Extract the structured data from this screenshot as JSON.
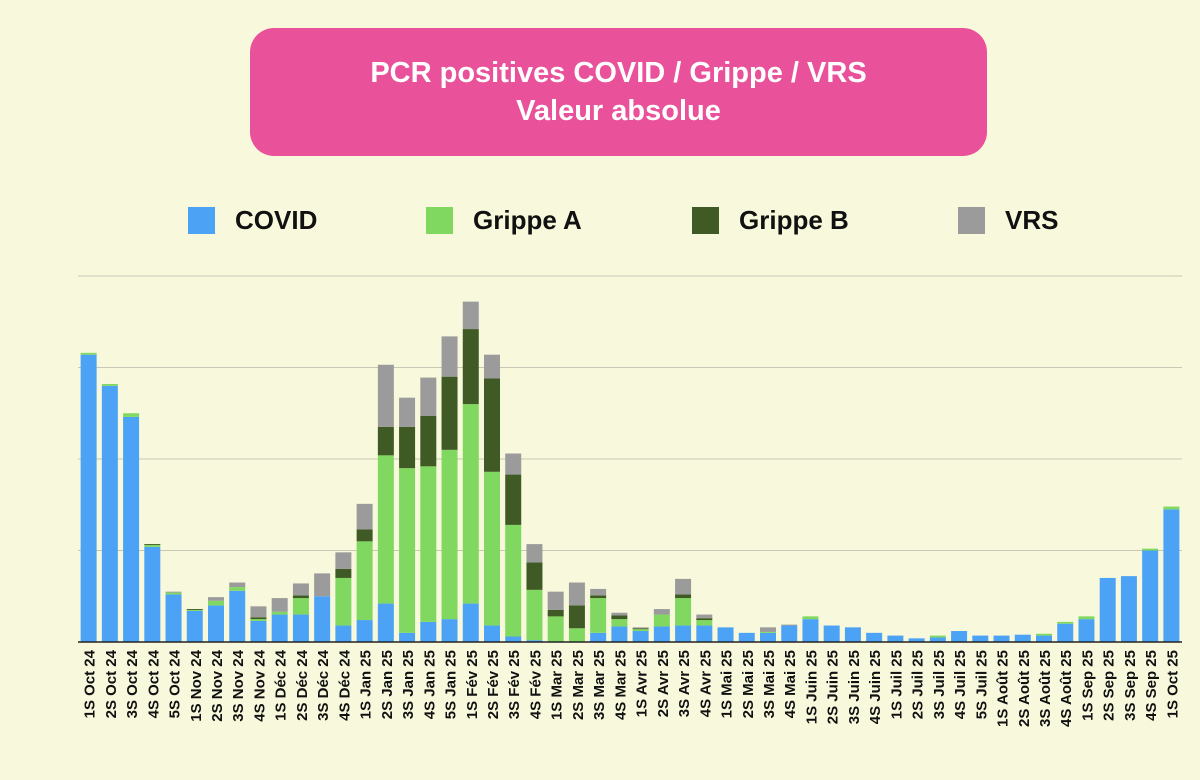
{
  "title": {
    "line1": "PCR positives COVID / Grippe / VRS",
    "line2": "Valeur absolue"
  },
  "legend": [
    {
      "label": "COVID",
      "color": "#4ca3f5"
    },
    {
      "label": "Grippe A",
      "color": "#80d860"
    },
    {
      "label": "Grippe B",
      "color": "#3f5a24"
    },
    {
      "label": "VRS",
      "color": "#9b9b9b"
    }
  ],
  "chart_data": {
    "type": "bar",
    "stacked": true,
    "title": "PCR positives COVID / Grippe / VRS — Valeur absolue",
    "xlabel": "",
    "ylabel": "",
    "ylim": [
      0,
      400
    ],
    "grid": true,
    "legend_position": "top",
    "categories": [
      "1S Oct 24",
      "2S Oct 24",
      "3S Oct 24",
      "4S Oct 24",
      "5S Oct 24",
      "1S Nov 24",
      "2S Nov 24",
      "3S Nov 24",
      "4S Nov 24",
      "1S Déc 24",
      "2S Déc 24",
      "3S Déc 24",
      "4S Déc 24",
      "1S Jan 25",
      "2S Jan 25",
      "3S Jan 25",
      "4S Jan 25",
      "5S Jan 25",
      "1S Fév 25",
      "2S Fév 25",
      "3S Fév 25",
      "4S Fév 25",
      "1S Mar 25",
      "2S Mar 25",
      "3S Mar 25",
      "4S Mar 25",
      "1S Avr 25",
      "2S Avr 25",
      "3S Avr 25",
      "4S Avr 25",
      "1S Mai 25",
      "2S Mai 25",
      "3S Mai 25",
      "4S Mai 25",
      "1S Juin 25",
      "2S Juin 25",
      "3S Juin 25",
      "4S Juin 25",
      "1S Juil 25",
      "2S Juil 25",
      "3S Juil 25",
      "4S Juil 25",
      "5S Juil 25",
      "1S Août 25",
      "2S Août 25",
      "3S Août 25",
      "4S Août 25",
      "1S Sep 25",
      "2S Sep 25",
      "3S Sep 25",
      "4S Sep 25",
      "1S Oct 25"
    ],
    "series": [
      {
        "name": "COVID",
        "color": "#4ca3f5",
        "values": [
          314,
          280,
          246,
          104,
          52,
          34,
          40,
          56,
          23,
          30,
          30,
          50,
          18,
          24,
          42,
          10,
          22,
          25,
          42,
          18,
          6,
          2,
          0,
          0,
          10,
          17,
          12,
          17,
          18,
          18,
          16,
          10,
          10,
          18,
          25,
          18,
          16,
          10,
          7,
          4,
          5,
          12,
          7,
          7,
          8,
          7,
          20,
          25,
          70,
          72,
          100,
          145
        ]
      },
      {
        "name": "Grippe A",
        "color": "#80d860",
        "values": [
          2,
          2,
          4,
          2,
          2,
          1,
          5,
          4,
          2,
          3,
          18,
          0,
          52,
          86,
          162,
          180,
          170,
          185,
          218,
          168,
          122,
          55,
          28,
          15,
          38,
          8,
          2,
          13,
          30,
          6,
          0,
          0,
          1,
          0,
          3,
          0,
          0,
          0,
          0,
          0,
          2,
          0,
          0,
          0,
          0,
          2,
          2,
          3,
          0,
          0,
          2,
          3
        ]
      },
      {
        "name": "Grippe B",
        "color": "#3f5a24",
        "values": [
          0,
          0,
          0,
          1,
          0,
          1,
          0,
          0,
          2,
          0,
          3,
          0,
          10,
          13,
          31,
          45,
          55,
          80,
          82,
          102,
          55,
          30,
          7,
          25,
          3,
          4,
          1,
          0,
          4,
          2,
          0,
          0,
          0,
          0,
          0,
          0,
          0,
          0,
          0,
          0,
          0,
          0,
          0,
          0,
          0,
          0,
          0,
          0,
          0,
          0,
          0,
          0
        ]
      },
      {
        "name": "VRS",
        "color": "#9b9b9b",
        "values": [
          0,
          0,
          0,
          0,
          1,
          0,
          4,
          5,
          12,
          15,
          13,
          25,
          18,
          28,
          68,
          32,
          42,
          44,
          30,
          26,
          23,
          20,
          20,
          25,
          7,
          3,
          1,
          6,
          17,
          4,
          0,
          0,
          5,
          1,
          0,
          0,
          0,
          0,
          0,
          0,
          0,
          0,
          0,
          0,
          0,
          0,
          0,
          0,
          0,
          0,
          0,
          0
        ]
      }
    ]
  }
}
